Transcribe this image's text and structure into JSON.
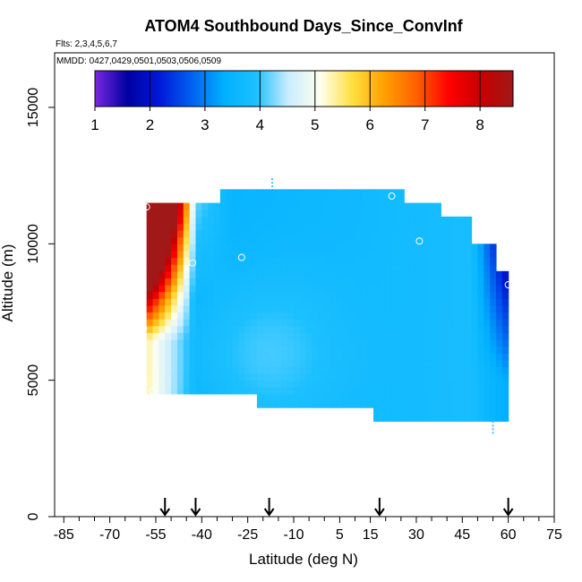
{
  "chart_data": {
    "type": "heatmap",
    "title": "ATOM4 Southbound Days_Since_ConvInf",
    "flights_note": "Flts: 2,3,4,5,6,7",
    "dates_note": "MMDD: 0427,0429,0501,0503,0506,0509",
    "xlabel": "Latitude (deg N)",
    "ylabel": "Altitude (m)",
    "xlim": [
      -88,
      75
    ],
    "ylim": [
      0,
      17000
    ],
    "x_ticks": [
      -85,
      -70,
      -55,
      -40,
      -25,
      -10,
      5,
      15,
      30,
      45,
      60,
      75
    ],
    "x_tick_labels": [
      "-85",
      "-70",
      "-55",
      "-40",
      "-25",
      "-10",
      "5",
      "15",
      "30",
      "45",
      "60",
      "75"
    ],
    "x_minor_ticks": [
      -80,
      -75,
      -65,
      -60,
      -50,
      -45,
      -35,
      -30,
      -20,
      -15,
      -5,
      0,
      10,
      20,
      25,
      35,
      40,
      50,
      55,
      65,
      70
    ],
    "y_ticks": [
      0,
      5000,
      10000,
      15000
    ],
    "y_tick_labels": [
      "0",
      "5000",
      "10000",
      "15000"
    ],
    "colorbar": {
      "min": 1,
      "max": 8.6,
      "tick_values": [
        1,
        2,
        3,
        4,
        5,
        6,
        7,
        8
      ],
      "tick_labels": [
        "1",
        "2",
        "3",
        "4",
        "5",
        "6",
        "7",
        "8"
      ],
      "colors": [
        "#7a28e0",
        "#0000a0",
        "#0018d8",
        "#0060f0",
        "#00b0ff",
        "#1cc0ff",
        "#c8ecff",
        "#fffff0",
        "#ffe040",
        "#ffa000",
        "#ff6000",
        "#ff0000",
        "#c80000",
        "#a01818"
      ]
    },
    "arrows_lat": [
      -52,
      -42,
      -18,
      18,
      60
    ],
    "flight_segments": [
      {
        "lat_min": -58,
        "lat_max": 60,
        "alt_min": 3000,
        "alt_max": 12400
      }
    ],
    "grid": false,
    "legend": "top"
  }
}
